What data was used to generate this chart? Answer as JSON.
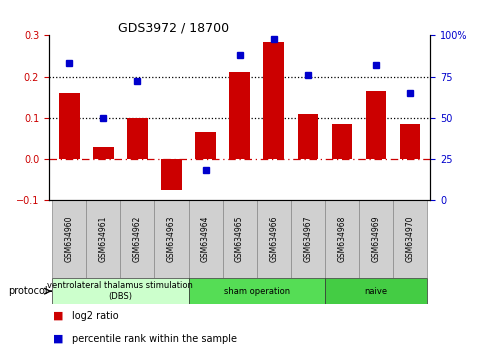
{
  "title": "GDS3972 / 18700",
  "samples": [
    "GSM634960",
    "GSM634961",
    "GSM634962",
    "GSM634963",
    "GSM634964",
    "GSM634965",
    "GSM634966",
    "GSM634967",
    "GSM634968",
    "GSM634969",
    "GSM634970"
  ],
  "log2_ratio": [
    0.16,
    0.03,
    0.1,
    -0.075,
    0.065,
    0.21,
    0.285,
    0.11,
    0.085,
    0.165,
    0.085
  ],
  "percentile_rank": [
    83,
    50,
    72,
    null,
    18,
    88,
    98,
    76,
    null,
    82,
    65
  ],
  "bar_color": "#cc0000",
  "dot_color": "#0000cc",
  "ylim_left": [
    -0.1,
    0.3
  ],
  "ylim_right": [
    0,
    100
  ],
  "yticks_left": [
    -0.1,
    0,
    0.1,
    0.2,
    0.3
  ],
  "yticks_right": [
    0,
    25,
    50,
    75,
    100
  ],
  "hline_dotted": [
    0.1,
    0.2
  ],
  "hline_dash": 0,
  "groups": [
    {
      "label": "ventrolateral thalamus stimulation\n(DBS)",
      "start": 0,
      "end": 3,
      "color": "#ccffcc"
    },
    {
      "label": "sham operation",
      "start": 4,
      "end": 7,
      "color": "#55dd55"
    },
    {
      "label": "naive",
      "start": 8,
      "end": 10,
      "color": "#44cc44"
    }
  ],
  "legend_items": [
    {
      "label": "log2 ratio",
      "color": "#cc0000"
    },
    {
      "label": "percentile rank within the sample",
      "color": "#0000cc"
    }
  ],
  "protocol_label": "protocol",
  "background_color": "#ffffff",
  "tick_label_color_left": "#cc0000",
  "tick_label_color_right": "#0000cc",
  "sample_box_color": "#d0d0d0",
  "bar_width": 0.6,
  "figsize": [
    4.89,
    3.54
  ],
  "dpi": 100
}
